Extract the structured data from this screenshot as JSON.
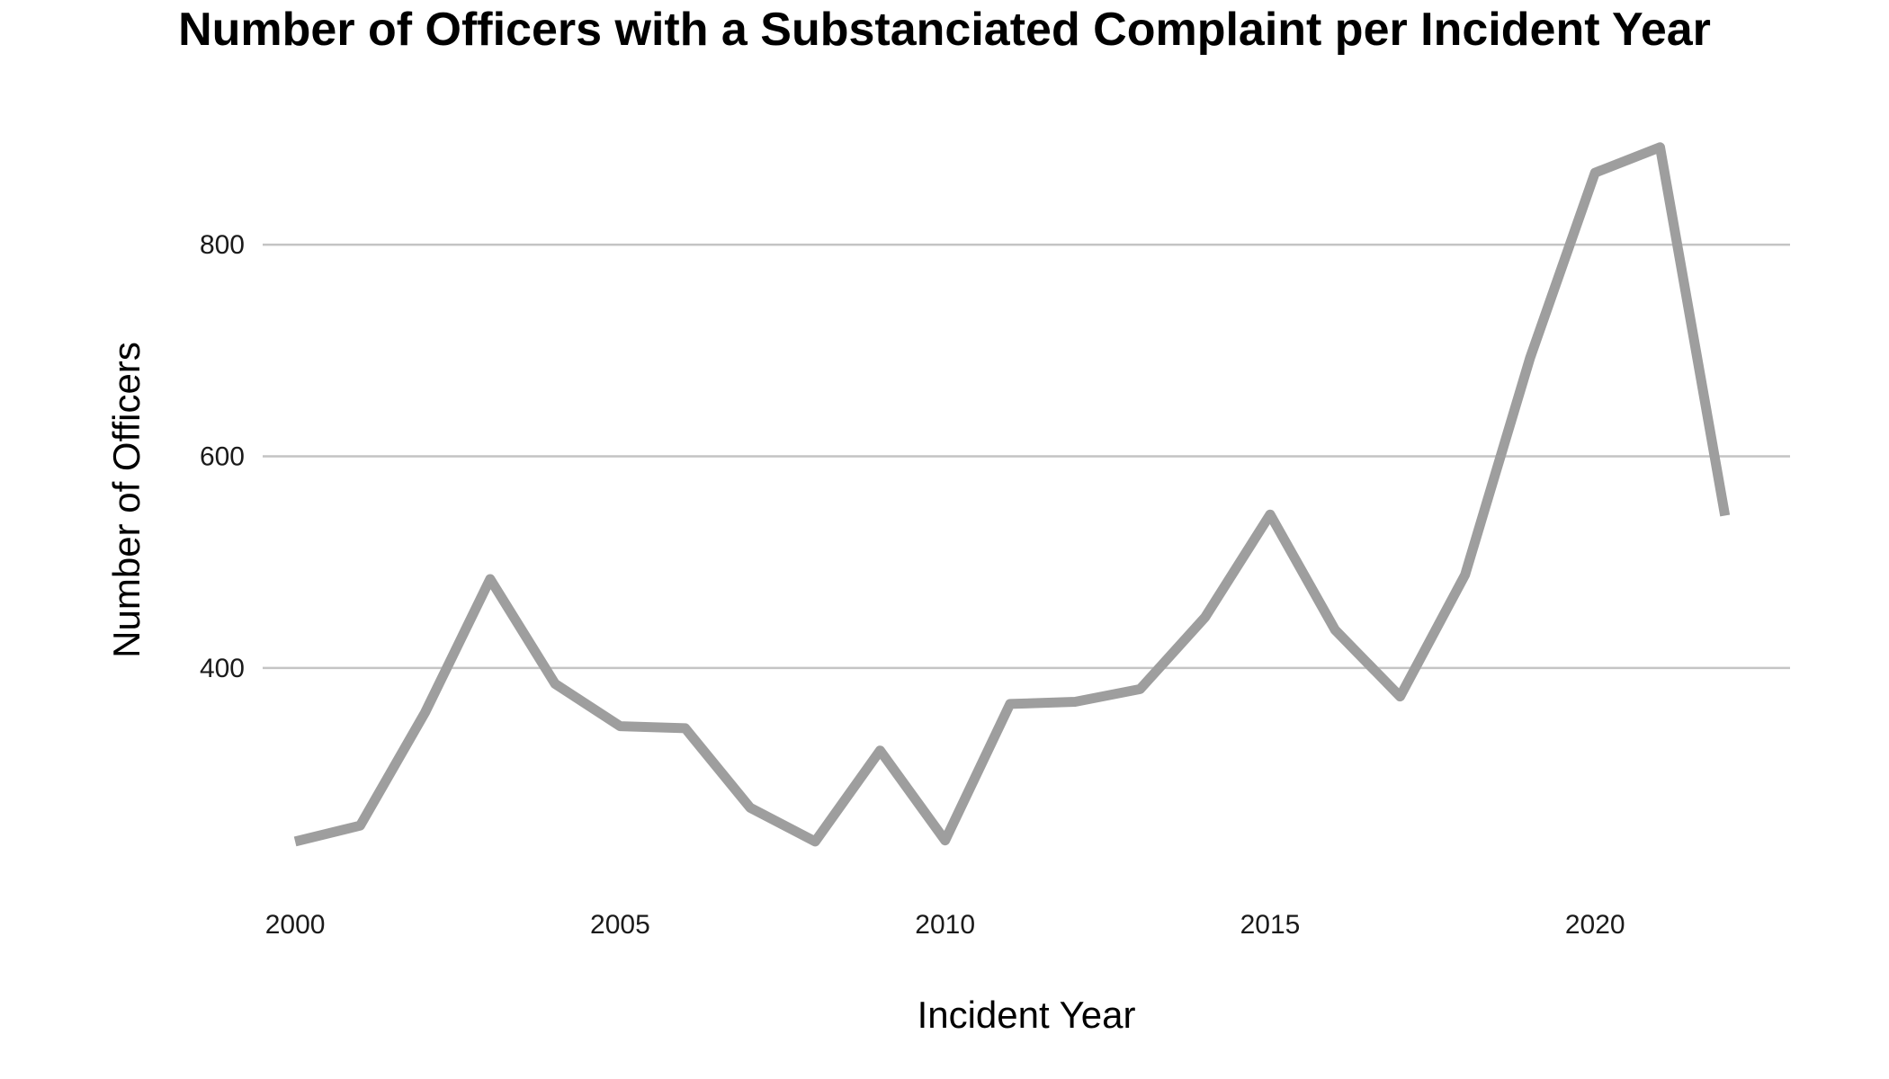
{
  "chart_data": {
    "type": "line",
    "title": "Number of Officers with a Substanciated Complaint per Incident Year",
    "xlabel": "Incident Year",
    "ylabel": "Number of Officers",
    "x": [
      2000,
      2001,
      2002,
      2003,
      2004,
      2005,
      2006,
      2007,
      2008,
      2009,
      2010,
      2011,
      2012,
      2013,
      2014,
      2015,
      2016,
      2017,
      2018,
      2019,
      2020,
      2021,
      2022
    ],
    "series": [
      {
        "values": [
          236,
          251,
          358,
          484,
          385,
          345,
          343,
          268,
          236,
          322,
          237,
          366,
          368,
          380,
          448,
          545,
          436,
          373,
          488,
          693,
          868,
          892,
          544
        ]
      }
    ],
    "xticks": [
      "2000",
      "2005",
      "2010",
      "2015",
      "2020"
    ],
    "yticks": [
      "400",
      "600",
      "800"
    ],
    "xlim": [
      1999.5,
      2023
    ],
    "ylim": [
      190,
      925
    ],
    "grid": "horizontal",
    "line_color": "#9e9e9e",
    "grid_color": "#c4c4c4"
  }
}
